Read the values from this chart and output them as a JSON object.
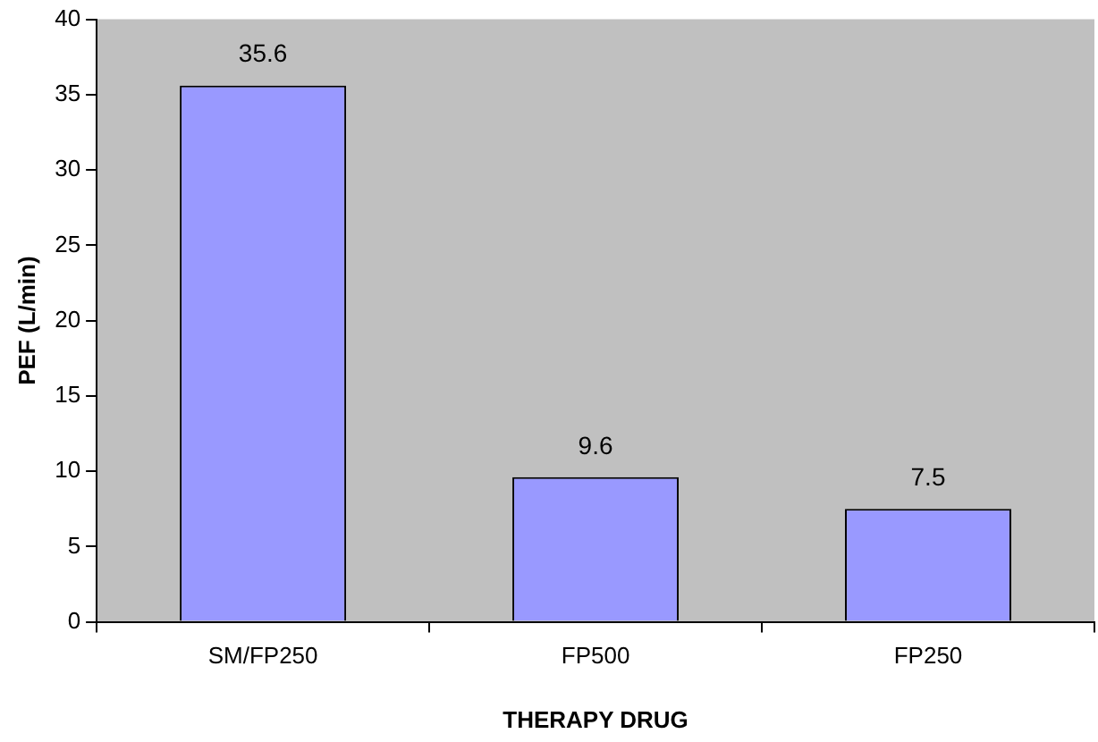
{
  "chart_data": {
    "type": "bar",
    "xlabel": "THERAPY DRUG",
    "ylabel": "PEF (L/min)",
    "categories": [
      "SM/FP250",
      "FP500",
      "FP250"
    ],
    "values": [
      35.6,
      9.6,
      7.5
    ],
    "color": "#9999ff",
    "ylim": [
      0,
      40
    ],
    "yticks": [
      0,
      5,
      10,
      15,
      20,
      25,
      30,
      35,
      40
    ],
    "grid": false,
    "legend": false,
    "data_labels": true
  }
}
